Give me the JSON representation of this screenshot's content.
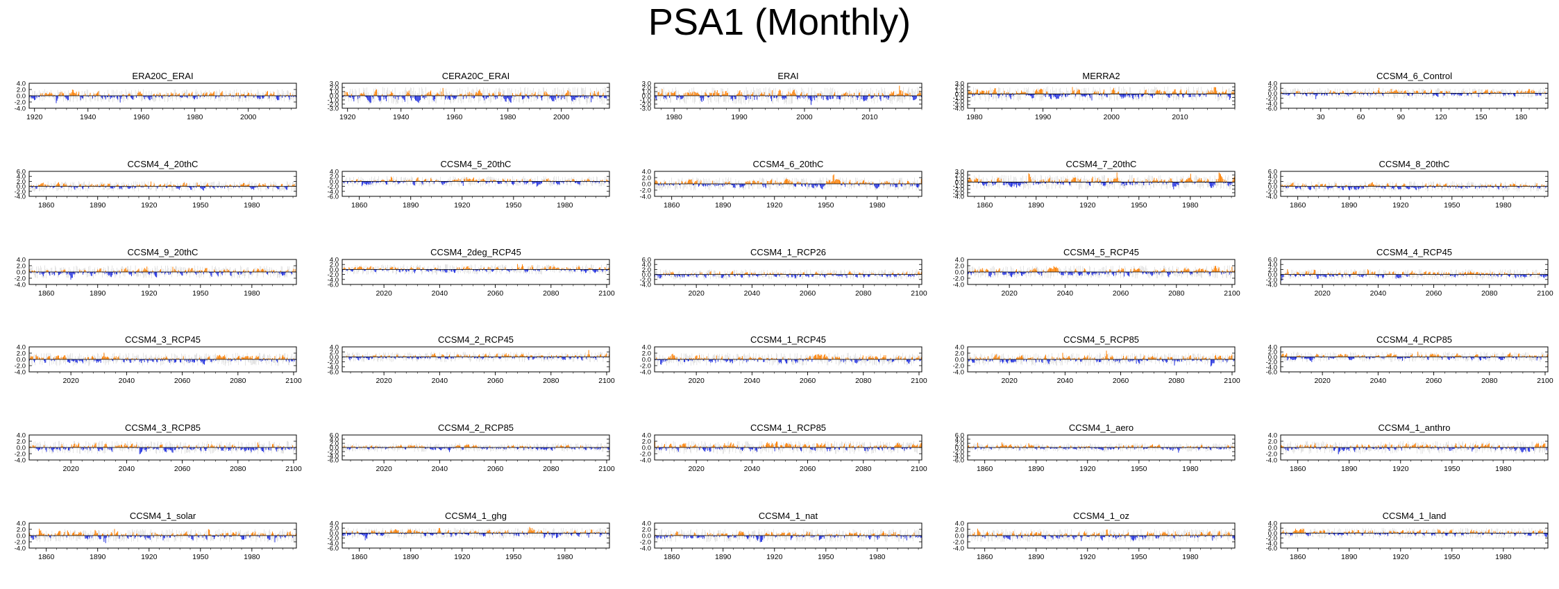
{
  "title": "PSA1 (Monthly)",
  "colors": {
    "positive": "#ff8000",
    "negative": "#1f2ee0",
    "envelope": "#c8c8c8",
    "axis": "#000000"
  },
  "chart_data": [
    {
      "type": "bar",
      "title": "ERA20C_ERAI",
      "x_range": [
        1918,
        2018
      ],
      "x_ticks": [
        1920,
        1940,
        1960,
        1980,
        2000
      ],
      "y_ticks": [
        "4.0",
        "2.0",
        "0.0",
        "-2.0",
        "-4.0"
      ],
      "ylim": [
        -4,
        4
      ]
    },
    {
      "type": "bar",
      "title": "CERA20C_ERAI",
      "x_range": [
        1918,
        2018
      ],
      "x_ticks": [
        1920,
        1940,
        1960,
        1980,
        2000
      ],
      "y_ticks": [
        "3.0",
        "2.0",
        "1.0",
        "0.0",
        "-1.0",
        "-2.0",
        "-3.0"
      ],
      "ylim": [
        -3,
        3
      ]
    },
    {
      "type": "bar",
      "title": "ERAI",
      "x_range": [
        1977,
        2018
      ],
      "x_ticks": [
        1980,
        1990,
        2000,
        2010
      ],
      "y_ticks": [
        "3.0",
        "2.0",
        "1.0",
        "0.0",
        "-1.0",
        "-2.0",
        "-3.0"
      ],
      "ylim": [
        -3,
        3
      ]
    },
    {
      "type": "bar",
      "title": "MERRA2",
      "x_range": [
        1979,
        2018
      ],
      "x_ticks": [
        1980,
        1990,
        2000,
        2010
      ],
      "y_ticks": [
        "3.0",
        "2.0",
        "1.0",
        "0.0",
        "-1.0",
        "-2.0",
        "-3.0",
        "-4.0"
      ],
      "ylim": [
        -4,
        3
      ]
    },
    {
      "type": "bar",
      "title": "CCSM4_6_Control",
      "x_range": [
        0,
        200
      ],
      "x_ticks": [
        30,
        60,
        90,
        120,
        150,
        180
      ],
      "y_ticks": [
        "4.0",
        "2.0",
        "0.0",
        "-2.0",
        "-4.0",
        "-6.0"
      ],
      "ylim": [
        -6,
        4
      ]
    },
    {
      "type": "bar",
      "title": "CCSM4_4_20thC",
      "x_range": [
        1850,
        2006
      ],
      "x_ticks": [
        1860,
        1890,
        1920,
        1950,
        1980
      ],
      "y_ticks": [
        "6.0",
        "4.0",
        "2.0",
        "0.0",
        "-2.0",
        "-4.0"
      ],
      "ylim": [
        -4,
        6
      ]
    },
    {
      "type": "bar",
      "title": "CCSM4_5_20thC",
      "x_range": [
        1850,
        2006
      ],
      "x_ticks": [
        1860,
        1890,
        1920,
        1950,
        1980
      ],
      "y_ticks": [
        "4.0",
        "2.0",
        "0.0",
        "-2.0",
        "-4.0",
        "-6.0"
      ],
      "ylim": [
        -6,
        4
      ]
    },
    {
      "type": "bar",
      "title": "CCSM4_6_20thC",
      "x_range": [
        1850,
        2006
      ],
      "x_ticks": [
        1860,
        1890,
        1920,
        1950,
        1980
      ],
      "y_ticks": [
        "4.0",
        "2.0",
        "0.0",
        "-2.0",
        "-4.0"
      ],
      "ylim": [
        -4,
        4
      ]
    },
    {
      "type": "bar",
      "title": "CCSM4_7_20thC",
      "x_range": [
        1850,
        2006
      ],
      "x_ticks": [
        1860,
        1890,
        1920,
        1950,
        1980
      ],
      "y_ticks": [
        "3.0",
        "2.0",
        "1.0",
        "0.0",
        "-1.0",
        "-2.0",
        "-3.0",
        "-4.0"
      ],
      "ylim": [
        -4,
        3
      ]
    },
    {
      "type": "bar",
      "title": "CCSM4_8_20thC",
      "x_range": [
        1850,
        2006
      ],
      "x_ticks": [
        1860,
        1890,
        1920,
        1950,
        1980
      ],
      "y_ticks": [
        "6.0",
        "4.0",
        "2.0",
        "0.0",
        "-2.0",
        "-4.0"
      ],
      "ylim": [
        -4,
        6
      ]
    },
    {
      "type": "bar",
      "title": "CCSM4_9_20thC",
      "x_range": [
        1850,
        2006
      ],
      "x_ticks": [
        1860,
        1890,
        1920,
        1950,
        1980
      ],
      "y_ticks": [
        "4.0",
        "2.0",
        "0.0",
        "-2.0",
        "-4.0"
      ],
      "ylim": [
        -4,
        4
      ]
    },
    {
      "type": "bar",
      "title": "CCSM4_2deg_RCP45",
      "x_range": [
        2005,
        2101
      ],
      "x_ticks": [
        2020,
        2040,
        2060,
        2080,
        2100
      ],
      "y_ticks": [
        "4.0",
        "2.0",
        "0.0",
        "-2.0",
        "-4.0",
        "-6.0"
      ],
      "ylim": [
        -6,
        4
      ]
    },
    {
      "type": "bar",
      "title": "CCSM4_1_RCP26",
      "x_range": [
        2005,
        2101
      ],
      "x_ticks": [
        2020,
        2040,
        2060,
        2080,
        2100
      ],
      "y_ticks": [
        "6.0",
        "4.0",
        "2.0",
        "0.0",
        "-2.0",
        "-4.0"
      ],
      "ylim": [
        -4,
        6
      ]
    },
    {
      "type": "bar",
      "title": "CCSM4_5_RCP45",
      "x_range": [
        2005,
        2101
      ],
      "x_ticks": [
        2020,
        2040,
        2060,
        2080,
        2100
      ],
      "y_ticks": [
        "4.0",
        "2.0",
        "0.0",
        "-2.0",
        "-4.0"
      ],
      "ylim": [
        -4,
        4
      ]
    },
    {
      "type": "bar",
      "title": "CCSM4_4_RCP45",
      "x_range": [
        2005,
        2101
      ],
      "x_ticks": [
        2020,
        2040,
        2060,
        2080,
        2100
      ],
      "y_ticks": [
        "6.0",
        "4.0",
        "2.0",
        "0.0",
        "-2.0",
        "-4.0"
      ],
      "ylim": [
        -4,
        6
      ]
    },
    {
      "type": "bar",
      "title": "CCSM4_3_RCP45",
      "x_range": [
        2005,
        2101
      ],
      "x_ticks": [
        2020,
        2040,
        2060,
        2080,
        2100
      ],
      "y_ticks": [
        "4.0",
        "2.0",
        "0.0",
        "-2.0",
        "-4.0"
      ],
      "ylim": [
        -4,
        4
      ]
    },
    {
      "type": "bar",
      "title": "CCSM4_2_RCP45",
      "x_range": [
        2005,
        2101
      ],
      "x_ticks": [
        2020,
        2040,
        2060,
        2080,
        2100
      ],
      "y_ticks": [
        "4.0",
        "2.0",
        "0.0",
        "-2.0",
        "-4.0",
        "-6.0"
      ],
      "ylim": [
        -6,
        4
      ]
    },
    {
      "type": "bar",
      "title": "CCSM4_1_RCP45",
      "x_range": [
        2005,
        2101
      ],
      "x_ticks": [
        2020,
        2040,
        2060,
        2080,
        2100
      ],
      "y_ticks": [
        "4.0",
        "2.0",
        "0.0",
        "-2.0",
        "-4.0"
      ],
      "ylim": [
        -4,
        4
      ]
    },
    {
      "type": "bar",
      "title": "CCSM4_5_RCP85",
      "x_range": [
        2005,
        2101
      ],
      "x_ticks": [
        2020,
        2040,
        2060,
        2080,
        2100
      ],
      "y_ticks": [
        "4.0",
        "2.0",
        "0.0",
        "-2.0",
        "-4.0"
      ],
      "ylim": [
        -4,
        4
      ]
    },
    {
      "type": "bar",
      "title": "CCSM4_4_RCP85",
      "x_range": [
        2005,
        2101
      ],
      "x_ticks": [
        2020,
        2040,
        2060,
        2080,
        2100
      ],
      "y_ticks": [
        "4.0",
        "2.0",
        "0.0",
        "-2.0",
        "-4.0",
        "-6.0"
      ],
      "ylim": [
        -6,
        4
      ]
    },
    {
      "type": "bar",
      "title": "CCSM4_3_RCP85",
      "x_range": [
        2005,
        2101
      ],
      "x_ticks": [
        2020,
        2040,
        2060,
        2080,
        2100
      ],
      "y_ticks": [
        "4.0",
        "2.0",
        "0.0",
        "-2.0",
        "-4.0"
      ],
      "ylim": [
        -4,
        4
      ]
    },
    {
      "type": "bar",
      "title": "CCSM4_2_RCP85",
      "x_range": [
        2005,
        2101
      ],
      "x_ticks": [
        2020,
        2040,
        2060,
        2080,
        2100
      ],
      "y_ticks": [
        "6.0",
        "4.0",
        "2.0",
        "0.0",
        "-2.0",
        "-4.0",
        "-6.0"
      ],
      "ylim": [
        -6,
        6
      ]
    },
    {
      "type": "bar",
      "title": "CCSM4_1_RCP85",
      "x_range": [
        2005,
        2101
      ],
      "x_ticks": [
        2020,
        2040,
        2060,
        2080,
        2100
      ],
      "y_ticks": [
        "4.0",
        "2.0",
        "0.0",
        "-2.0",
        "-4.0"
      ],
      "ylim": [
        -4,
        4
      ]
    },
    {
      "type": "bar",
      "title": "CCSM4_1_aero",
      "x_range": [
        1850,
        2006
      ],
      "x_ticks": [
        1860,
        1890,
        1920,
        1950,
        1980
      ],
      "y_ticks": [
        "6.0",
        "4.0",
        "2.0",
        "0.0",
        "-2.0",
        "-4.0",
        "-6.0"
      ],
      "ylim": [
        -6,
        6
      ]
    },
    {
      "type": "bar",
      "title": "CCSM4_1_anthro",
      "x_range": [
        1850,
        2006
      ],
      "x_ticks": [
        1860,
        1890,
        1920,
        1950,
        1980
      ],
      "y_ticks": [
        "4.0",
        "2.0",
        "0.0",
        "-2.0",
        "-4.0"
      ],
      "ylim": [
        -4,
        4
      ]
    },
    {
      "type": "bar",
      "title": "CCSM4_1_solar",
      "x_range": [
        1850,
        2006
      ],
      "x_ticks": [
        1860,
        1890,
        1920,
        1950,
        1980
      ],
      "y_ticks": [
        "4.0",
        "2.0",
        "0.0",
        "-2.0",
        "-4.0"
      ],
      "ylim": [
        -4,
        4
      ]
    },
    {
      "type": "bar",
      "title": "CCSM4_1_ghg",
      "x_range": [
        1850,
        2006
      ],
      "x_ticks": [
        1860,
        1890,
        1920,
        1950,
        1980
      ],
      "y_ticks": [
        "4.0",
        "2.0",
        "0.0",
        "-2.0",
        "-4.0",
        "-6.0"
      ],
      "ylim": [
        -6,
        4
      ]
    },
    {
      "type": "bar",
      "title": "CCSM4_1_nat",
      "x_range": [
        1850,
        2006
      ],
      "x_ticks": [
        1860,
        1890,
        1920,
        1950,
        1980
      ],
      "y_ticks": [
        "4.0",
        "2.0",
        "0.0",
        "-2.0",
        "-4.0"
      ],
      "ylim": [
        -4,
        4
      ]
    },
    {
      "type": "bar",
      "title": "CCSM4_1_oz",
      "x_range": [
        1850,
        2006
      ],
      "x_ticks": [
        1860,
        1890,
        1920,
        1950,
        1980
      ],
      "y_ticks": [
        "4.0",
        "2.0",
        "0.0",
        "-2.0",
        "-4.0"
      ],
      "ylim": [
        -4,
        4
      ]
    },
    {
      "type": "bar",
      "title": "CCSM4_1_land",
      "x_range": [
        1850,
        2006
      ],
      "x_ticks": [
        1860,
        1890,
        1920,
        1950,
        1980
      ],
      "y_ticks": [
        "4.0",
        "2.0",
        "0.0",
        "-2.0",
        "-4.0",
        "-6.0"
      ],
      "ylim": [
        -6,
        4
      ]
    }
  ]
}
